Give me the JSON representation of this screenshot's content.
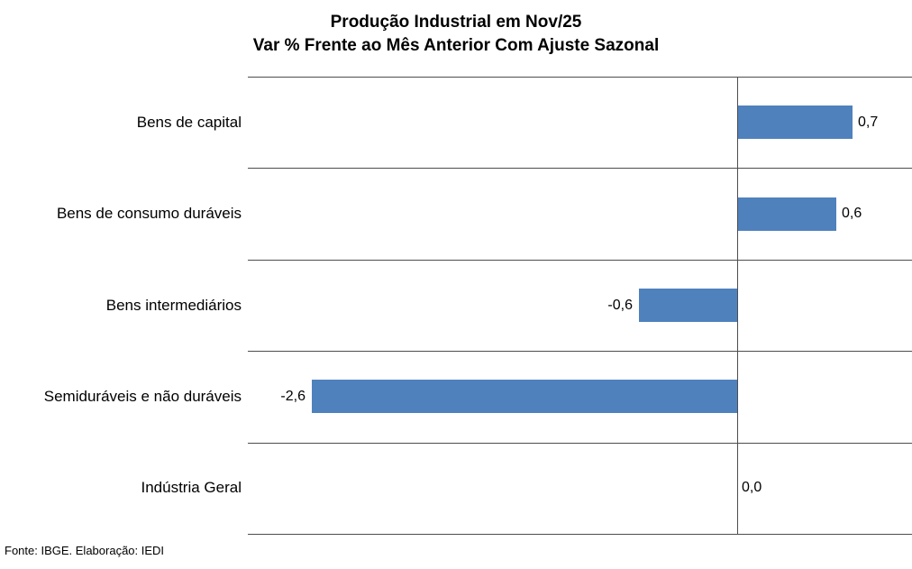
{
  "footer": {
    "text": "Fonte: IBGE. Elaboração: IEDI"
  },
  "chart_data": {
    "type": "bar",
    "orientation": "horizontal",
    "title": "Produção Industrial em Nov/25",
    "subtitle": "Var % Frente ao Mês Anterior Com Ajuste Sazonal",
    "categories": [
      "Bens de capital",
      "Bens de consumo duráveis",
      "Bens intermediários",
      "Semiduráveis e não duráveis",
      "Indústria Geral"
    ],
    "values": [
      0.7,
      0.6,
      -0.6,
      -2.6,
      0.0
    ],
    "value_labels": [
      "0,7",
      "0,6",
      "-0,6",
      "-2,6",
      "0,0"
    ],
    "xlabel": "",
    "ylabel": "",
    "xlim": [
      -3.0,
      1.07
    ],
    "grid": "horizontal row separators",
    "legend": "none",
    "bar_color": "#4F81BD",
    "line_color": "#4d4d4d",
    "data_label_decimal_separator": ","
  }
}
